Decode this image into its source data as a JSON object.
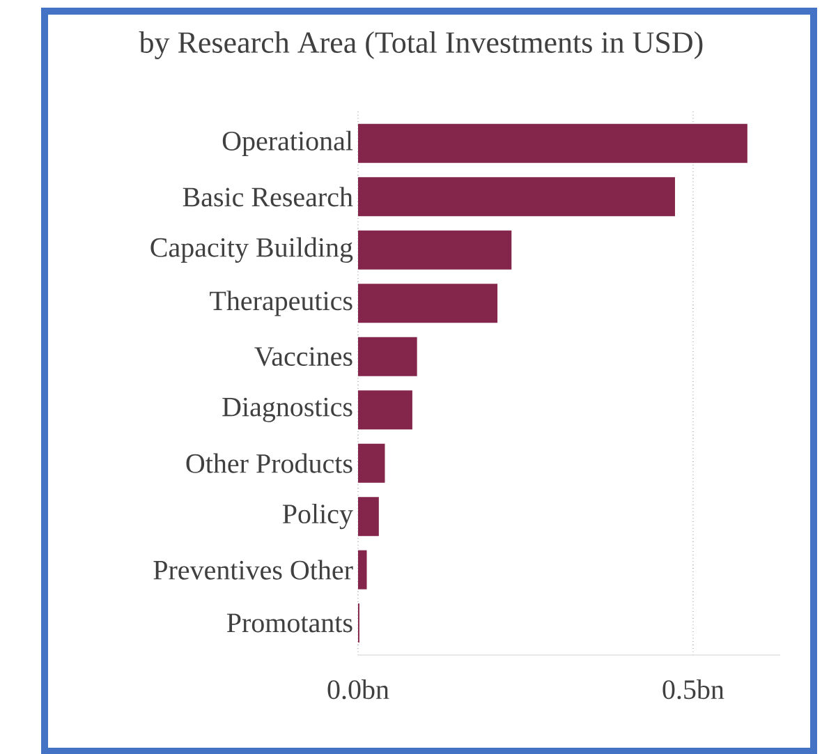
{
  "chart_data": {
    "type": "bar",
    "orientation": "horizontal",
    "title": "by Research Area (Total Investments in USD)",
    "categories": [
      "Operational",
      "Basic Research",
      "Capacity Building",
      "Therapeutics",
      "Vaccines",
      "Diagnostics",
      "Other Products",
      "Policy",
      "Preventives Other",
      "Promotants"
    ],
    "values": [
      0.581,
      0.473,
      0.229,
      0.208,
      0.088,
      0.081,
      0.04,
      0.031,
      0.013,
      0.002
    ],
    "color": "#84264b",
    "xlim": [
      0,
      0.63
    ],
    "xticks": [
      {
        "value": 0,
        "label": "0.0bn"
      },
      {
        "value": 0.5,
        "label": "0.5bn"
      }
    ],
    "grid": "x"
  }
}
